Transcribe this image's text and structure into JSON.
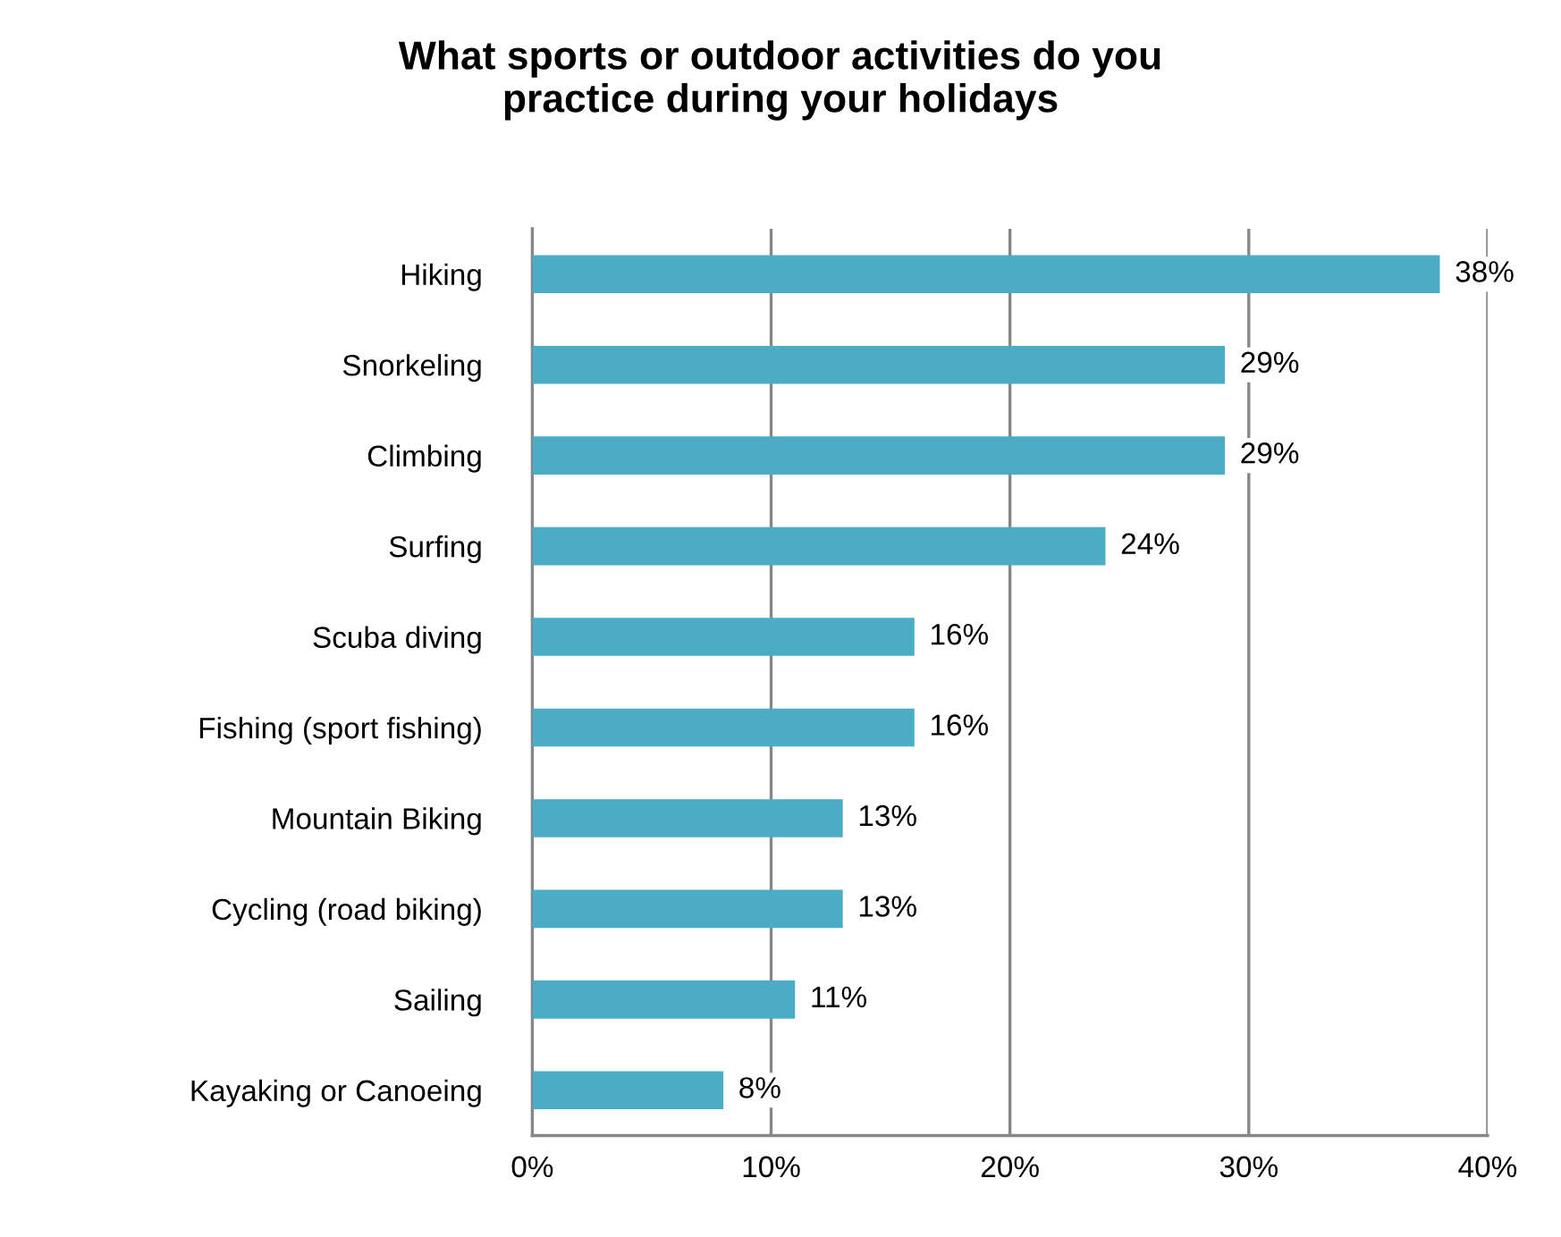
{
  "chart_data": {
    "type": "bar",
    "orientation": "horizontal",
    "title": "What sports or outdoor activities do you\npractice during your holidays",
    "categories": [
      "Hiking",
      "Snorkeling",
      "Climbing",
      "Surfing",
      "Scuba diving",
      "Fishing (sport fishing)",
      "Mountain Biking",
      "Cycling (road biking)",
      "Sailing",
      "Kayaking or Canoeing"
    ],
    "values": [
      38,
      29,
      29,
      24,
      16,
      16,
      13,
      13,
      11,
      8
    ],
    "value_labels": [
      "38%",
      "29%",
      "29%",
      "24%",
      "16%",
      "16%",
      "13%",
      "13%",
      "11%",
      "8%"
    ],
    "color": "#4bacc6",
    "xlim": [
      0,
      40
    ],
    "xticks": [
      {
        "value": 0,
        "label": "0%"
      },
      {
        "value": 10,
        "label": "10%"
      },
      {
        "value": 20,
        "label": "20%"
      },
      {
        "value": 30,
        "label": "30%"
      },
      {
        "value": 40,
        "label": "40%"
      }
    ],
    "grid": "x"
  }
}
